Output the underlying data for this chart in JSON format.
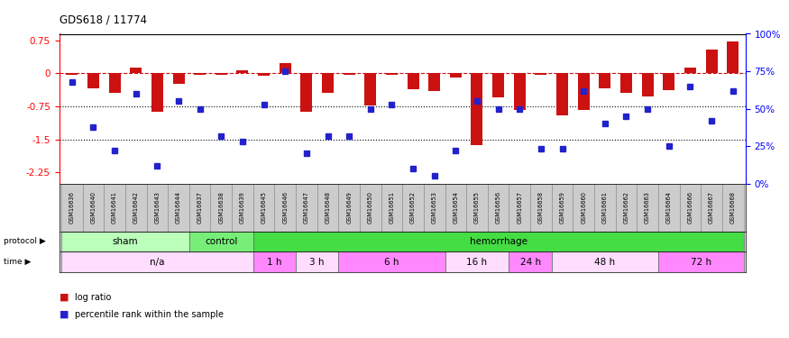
{
  "title": "GDS618 / 11774",
  "samples": [
    "GSM16636",
    "GSM16640",
    "GSM16641",
    "GSM16642",
    "GSM16643",
    "GSM16644",
    "GSM16637",
    "GSM16638",
    "GSM16639",
    "GSM16645",
    "GSM16646",
    "GSM16647",
    "GSM16648",
    "GSM16649",
    "GSM16650",
    "GSM16651",
    "GSM16652",
    "GSM16653",
    "GSM16654",
    "GSM16655",
    "GSM16656",
    "GSM16657",
    "GSM16658",
    "GSM16659",
    "GSM16660",
    "GSM16661",
    "GSM16662",
    "GSM16663",
    "GSM16664",
    "GSM16666",
    "GSM16667",
    "GSM16668"
  ],
  "log_ratio": [
    -0.04,
    -0.33,
    -0.43,
    0.13,
    -0.87,
    -0.23,
    -0.04,
    -0.04,
    0.08,
    -0.05,
    0.24,
    -0.88,
    -0.45,
    -0.04,
    -0.72,
    -0.04,
    -0.35,
    -0.4,
    -0.09,
    -1.62,
    -0.55,
    -0.82,
    -0.04,
    -0.95,
    -0.82,
    -0.33,
    -0.45,
    -0.53,
    -0.38,
    0.13,
    0.55,
    0.73
  ],
  "percentile": [
    68,
    38,
    22,
    60,
    12,
    55,
    50,
    32,
    28,
    53,
    75,
    20,
    32,
    32,
    50,
    53,
    10,
    5,
    22,
    55,
    50,
    50,
    23,
    23,
    62,
    40,
    45,
    50,
    25,
    65,
    42,
    62
  ],
  "protocol_groups": [
    {
      "label": "sham",
      "start": 0,
      "end": 6,
      "color": "#bbffbb"
    },
    {
      "label": "control",
      "start": 6,
      "end": 9,
      "color": "#77ee77"
    },
    {
      "label": "hemorrhage",
      "start": 9,
      "end": 32,
      "color": "#44dd44"
    }
  ],
  "time_groups": [
    {
      "label": "n/a",
      "start": 0,
      "end": 9,
      "color": "#ffddff"
    },
    {
      "label": "1 h",
      "start": 9,
      "end": 11,
      "color": "#ff88ff"
    },
    {
      "label": "3 h",
      "start": 11,
      "end": 13,
      "color": "#ffddff"
    },
    {
      "label": "6 h",
      "start": 13,
      "end": 18,
      "color": "#ff88ff"
    },
    {
      "label": "16 h",
      "start": 18,
      "end": 21,
      "color": "#ffddff"
    },
    {
      "label": "24 h",
      "start": 21,
      "end": 23,
      "color": "#ff88ff"
    },
    {
      "label": "48 h",
      "start": 23,
      "end": 28,
      "color": "#ffddff"
    },
    {
      "label": "72 h",
      "start": 28,
      "end": 32,
      "color": "#ff88ff"
    }
  ],
  "ylim_left": [
    -2.5,
    0.9
  ],
  "yticks_left": [
    0.75,
    0.0,
    -0.75,
    -1.5,
    -2.25
  ],
  "yticks_right_pct": [
    100,
    75,
    50,
    25,
    0
  ],
  "bar_color": "#cc1111",
  "dot_color": "#2222cc",
  "bg_color": "#ffffff",
  "label_gray": "#cccccc",
  "sampleband_color": "#cccccc"
}
